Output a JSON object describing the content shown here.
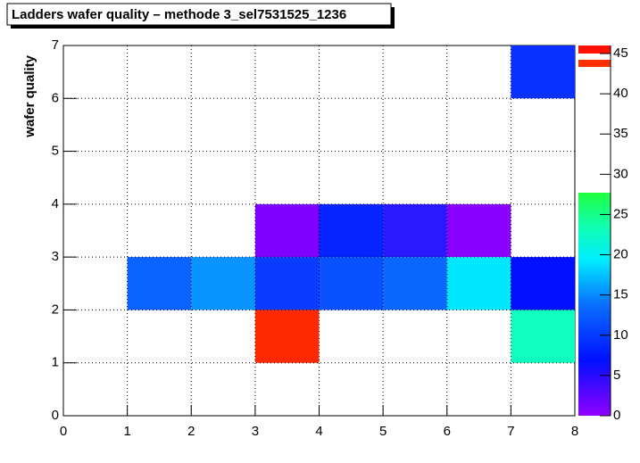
{
  "chart_data": {
    "type": "heatmap",
    "title": "Ladders wafer quality – methode 3_sel7531525_1236",
    "y_label": "wafer quality",
    "xlim": [
      0,
      8
    ],
    "xticks": [
      0,
      1,
      2,
      3,
      4,
      5,
      6,
      7,
      8
    ],
    "ylim": [
      0,
      7
    ],
    "yticks": [
      0,
      1,
      2,
      3,
      4,
      5,
      6,
      7
    ],
    "zlim": [
      0,
      46
    ],
    "zticks": [
      0,
      5,
      10,
      15,
      20,
      25,
      30,
      35,
      40,
      45
    ],
    "grid": true,
    "cells": [
      {
        "x": 7,
        "y": 6,
        "value": 6,
        "color": "#0a30ff"
      },
      {
        "x": 3,
        "y": 3,
        "value": 2,
        "color": "#8000ff"
      },
      {
        "x": 4,
        "y": 3,
        "value": 7,
        "color": "#0424ff"
      },
      {
        "x": 5,
        "y": 3,
        "value": 5,
        "color": "#2a18ff"
      },
      {
        "x": 6,
        "y": 3,
        "value": 3,
        "color": "#8a00ff"
      },
      {
        "x": 1,
        "y": 2,
        "value": 11,
        "color": "#0a62ff"
      },
      {
        "x": 2,
        "y": 2,
        "value": 13,
        "color": "#0a94ff"
      },
      {
        "x": 3,
        "y": 2,
        "value": 8,
        "color": "#0a3cff"
      },
      {
        "x": 4,
        "y": 2,
        "value": 10,
        "color": "#0a52ff"
      },
      {
        "x": 5,
        "y": 2,
        "value": 11,
        "color": "#0a68ff"
      },
      {
        "x": 6,
        "y": 2,
        "value": 16,
        "color": "#00e6ff"
      },
      {
        "x": 7,
        "y": 2,
        "value": 6,
        "color": "#0010ff"
      },
      {
        "x": 3,
        "y": 1,
        "value": 44,
        "color": "#ff2a00"
      },
      {
        "x": 7,
        "y": 1,
        "value": 20,
        "color": "#10ffc0"
      }
    ]
  }
}
